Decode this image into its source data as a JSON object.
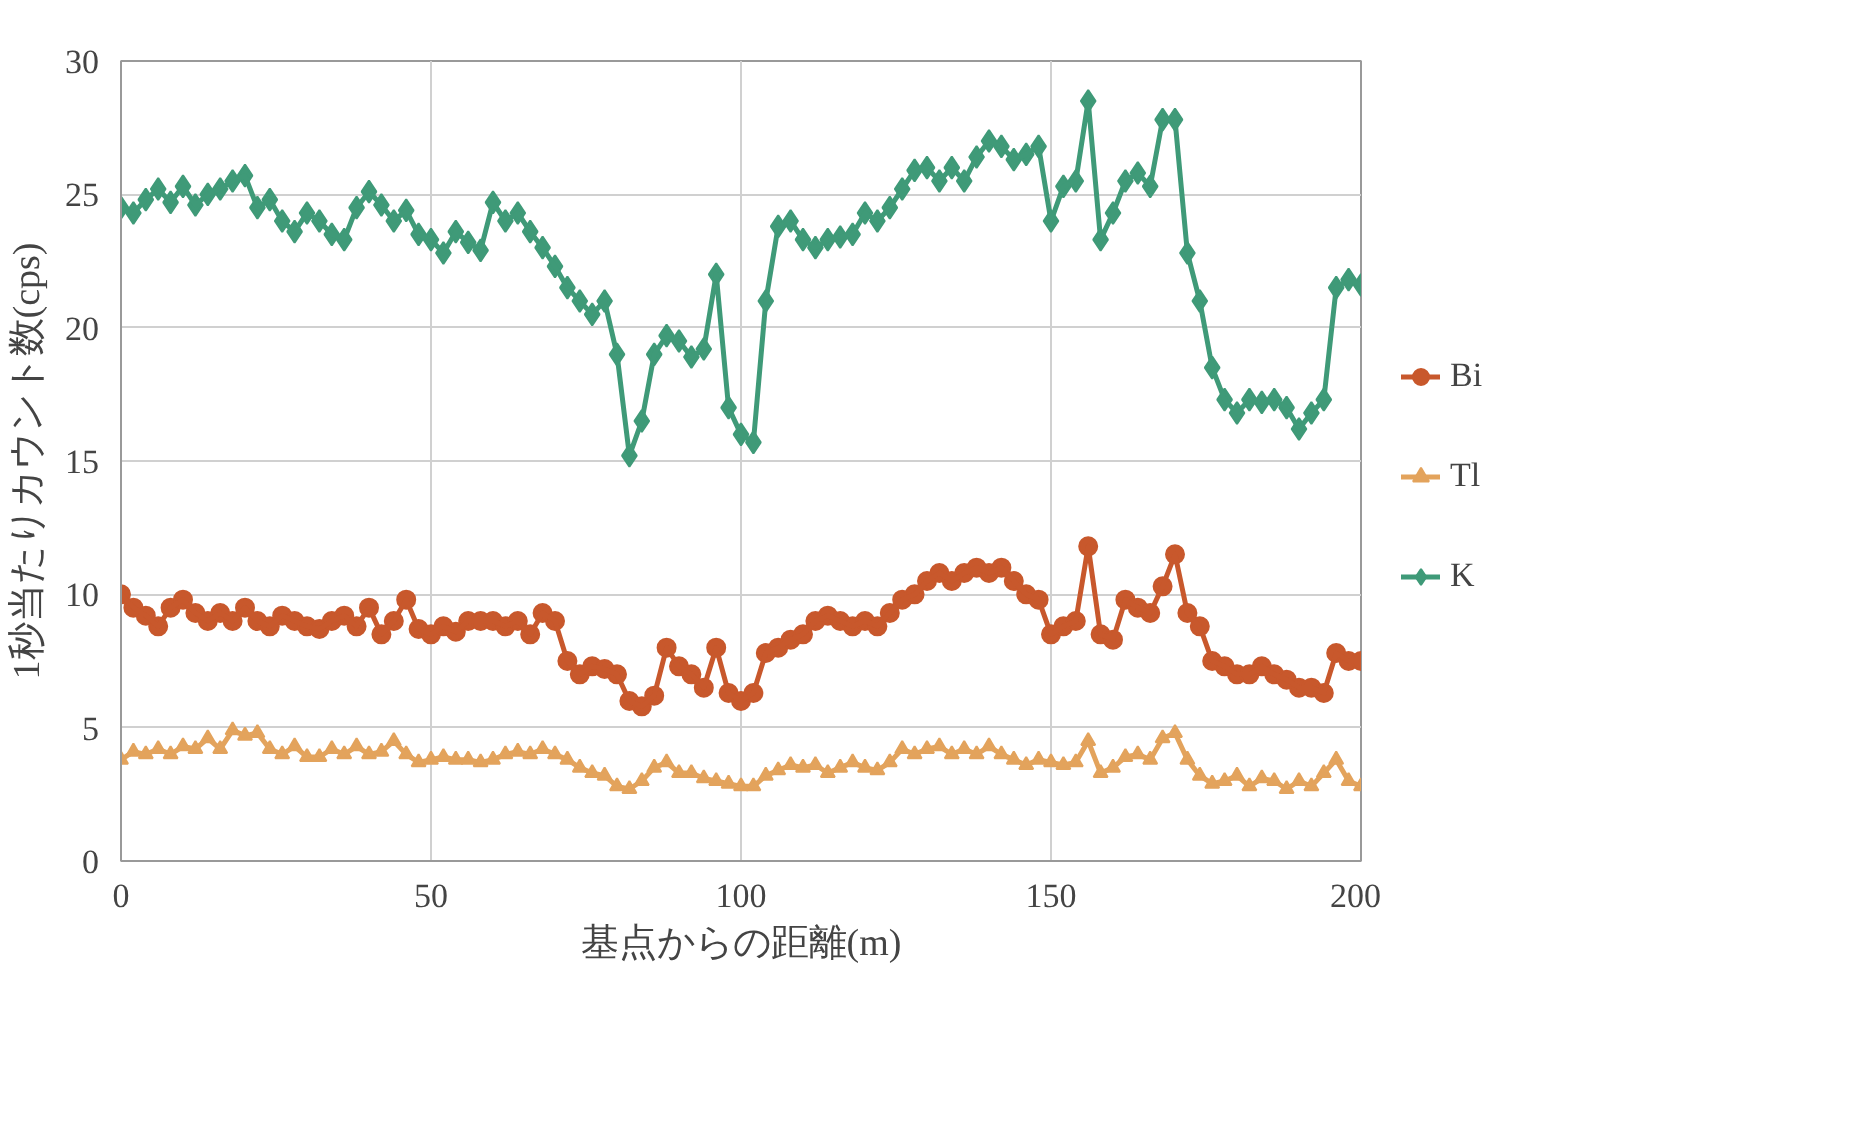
{
  "chart_data": {
    "type": "line",
    "xlabel": "基点からの距離(m)",
    "ylabel": "1秒当たりカウント数(cps)",
    "x": [
      0,
      2,
      4,
      6,
      8,
      10,
      12,
      14,
      16,
      18,
      20,
      22,
      24,
      26,
      28,
      30,
      32,
      34,
      36,
      38,
      40,
      42,
      44,
      46,
      48,
      50,
      52,
      54,
      56,
      58,
      60,
      62,
      64,
      66,
      68,
      70,
      72,
      74,
      76,
      78,
      80,
      82,
      84,
      86,
      88,
      90,
      92,
      94,
      96,
      98,
      100,
      102,
      104,
      106,
      108,
      110,
      112,
      114,
      116,
      118,
      120,
      122,
      124,
      126,
      128,
      130,
      132,
      134,
      136,
      138,
      140,
      142,
      144,
      146,
      148,
      150,
      152,
      154,
      156,
      158,
      160,
      162,
      164,
      166,
      168,
      170,
      172,
      174,
      176,
      178,
      180,
      182,
      184,
      186,
      188,
      190,
      192,
      194,
      196,
      198,
      200
    ],
    "series": [
      {
        "name": "Bi",
        "color": "#c8582c",
        "marker": "circle",
        "values": [
          10.0,
          9.5,
          9.2,
          8.8,
          9.5,
          9.8,
          9.3,
          9.0,
          9.3,
          9.0,
          9.5,
          9.0,
          8.8,
          9.2,
          9.0,
          8.8,
          8.7,
          9.0,
          9.2,
          8.8,
          9.5,
          8.5,
          9.0,
          9.8,
          8.7,
          8.5,
          8.8,
          8.6,
          9.0,
          9.0,
          9.0,
          8.8,
          9.0,
          8.5,
          9.3,
          9.0,
          7.5,
          7.0,
          7.3,
          7.2,
          7.0,
          6.0,
          5.8,
          6.2,
          8.0,
          7.3,
          7.0,
          6.5,
          8.0,
          6.3,
          6.0,
          6.3,
          7.8,
          8.0,
          8.3,
          8.5,
          9.0,
          9.2,
          9.0,
          8.8,
          9.0,
          8.8,
          9.3,
          9.8,
          10.0,
          10.5,
          10.8,
          10.5,
          10.8,
          11.0,
          10.8,
          11.0,
          10.5,
          10.0,
          9.8,
          8.5,
          8.8,
          9.0,
          11.8,
          8.5,
          8.3,
          9.8,
          9.5,
          9.3,
          10.3,
          11.5,
          9.3,
          8.8,
          7.5,
          7.3,
          7.0,
          7.0,
          7.3,
          7.0,
          6.8,
          6.5,
          6.5,
          6.3,
          7.8,
          7.5,
          7.5
        ]
      },
      {
        "name": "Tl",
        "color": "#e3a35c",
        "marker": "triangle",
        "values": [
          3.8,
          4.1,
          4.0,
          4.2,
          4.0,
          4.3,
          4.2,
          4.6,
          4.2,
          4.9,
          4.7,
          4.8,
          4.2,
          4.0,
          4.3,
          3.9,
          3.9,
          4.2,
          4.0,
          4.3,
          4.0,
          4.1,
          4.5,
          4.0,
          3.7,
          3.8,
          3.9,
          3.8,
          3.8,
          3.7,
          3.8,
          4.0,
          4.1,
          4.0,
          4.2,
          4.0,
          3.8,
          3.5,
          3.3,
          3.2,
          2.8,
          2.7,
          3.0,
          3.5,
          3.7,
          3.3,
          3.3,
          3.1,
          3.0,
          2.9,
          2.8,
          2.8,
          3.2,
          3.4,
          3.6,
          3.5,
          3.6,
          3.3,
          3.5,
          3.7,
          3.5,
          3.4,
          3.7,
          4.2,
          4.0,
          4.2,
          4.3,
          4.0,
          4.2,
          4.0,
          4.3,
          4.0,
          3.8,
          3.6,
          3.8,
          3.7,
          3.6,
          3.7,
          4.5,
          3.3,
          3.5,
          3.9,
          4.0,
          3.8,
          4.6,
          4.8,
          3.8,
          3.2,
          2.9,
          3.0,
          3.2,
          2.8,
          3.1,
          3.0,
          2.7,
          3.0,
          2.8,
          3.3,
          3.8,
          3.0,
          2.8
        ]
      },
      {
        "name": "K",
        "color": "#3f9a78",
        "marker": "diamond",
        "values": [
          24.5,
          24.3,
          24.8,
          25.2,
          24.7,
          25.3,
          24.6,
          25.0,
          25.2,
          25.5,
          25.7,
          24.5,
          24.8,
          24.0,
          23.6,
          24.3,
          24.0,
          23.5,
          23.3,
          24.5,
          25.1,
          24.6,
          24.0,
          24.4,
          23.5,
          23.3,
          22.8,
          23.6,
          23.2,
          22.9,
          24.7,
          24.0,
          24.3,
          23.6,
          23.0,
          22.3,
          21.5,
          21.0,
          20.5,
          21.0,
          19.0,
          15.2,
          16.5,
          19.0,
          19.7,
          19.5,
          18.9,
          19.2,
          22.0,
          17.0,
          16.0,
          15.7,
          21.0,
          23.8,
          24.0,
          23.3,
          23.0,
          23.3,
          23.4,
          23.5,
          24.3,
          24.0,
          24.5,
          25.2,
          25.9,
          26.0,
          25.5,
          26.0,
          25.5,
          26.4,
          27.0,
          26.8,
          26.3,
          26.5,
          26.8,
          24.0,
          25.3,
          25.5,
          28.5,
          23.3,
          24.3,
          25.5,
          25.8,
          25.3,
          27.8,
          27.8,
          22.8,
          21.0,
          18.5,
          17.3,
          16.8,
          17.3,
          17.2,
          17.3,
          17.0,
          16.2,
          16.8,
          17.3,
          21.5,
          21.8,
          21.6
        ]
      }
    ],
    "xlim": [
      0,
      200
    ],
    "xticks": [
      0,
      50,
      100,
      150,
      200
    ],
    "ylim": [
      0,
      30
    ],
    "yticks": [
      0,
      5,
      10,
      15,
      20,
      25,
      30
    ],
    "grid": true,
    "legend": "right",
    "line_style": "solid"
  }
}
